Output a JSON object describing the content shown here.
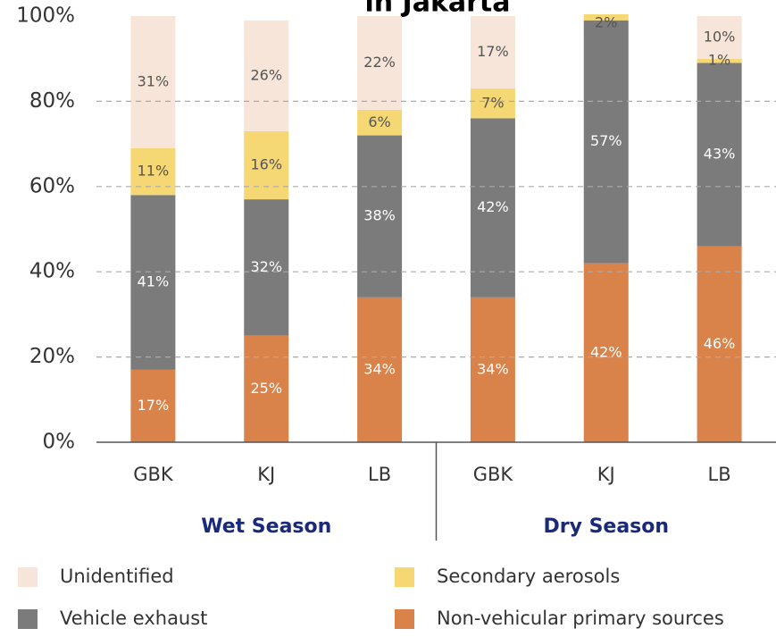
{
  "chart_data": {
    "type": "stacked_bar",
    "title": "in Jakarta",
    "categories": [
      "GBK",
      "KJ",
      "LB",
      "GBK",
      "KJ",
      "LB"
    ],
    "groups": [
      {
        "name": "Wet Season",
        "size": 3
      },
      {
        "name": "Dry Season",
        "size": 3
      }
    ],
    "series": [
      {
        "name": "Non-vehicular primary sources",
        "color": "#d9834a",
        "values": [
          17,
          25,
          34,
          34,
          42,
          46
        ],
        "value_labels": [
          "17%",
          "25%",
          "34%",
          "34%",
          "42%",
          "46%"
        ]
      },
      {
        "name": "Vehicle exhaust",
        "color": "#7b7b7b",
        "values": [
          41,
          32,
          38,
          42,
          57,
          43
        ],
        "value_labels": [
          "41%",
          "32%",
          "38%",
          "42%",
          "57%",
          "43%"
        ]
      },
      {
        "name": "Secondary aerosols",
        "color": "#f5d873",
        "values": [
          11,
          16,
          6,
          7,
          2,
          1
        ],
        "value_labels": [
          "11%",
          "16%",
          "6%",
          "7%",
          "2%",
          "1%"
        ]
      },
      {
        "name": "Unidentified",
        "color": "#f6e5d8",
        "values": [
          31,
          26,
          22,
          17,
          null,
          10
        ],
        "value_labels": [
          "31%",
          "26%",
          "22%",
          "17%",
          null,
          "10%"
        ]
      }
    ],
    "ylim": [
      0,
      100
    ],
    "yticks": [
      {
        "value": 0,
        "label": "0%"
      },
      {
        "value": 20,
        "label": "20%"
      },
      {
        "value": 40,
        "label": "40%"
      },
      {
        "value": 60,
        "label": "60%"
      },
      {
        "value": 80,
        "label": "80%"
      },
      {
        "value": 100,
        "label": "100%"
      }
    ],
    "grid": true
  }
}
